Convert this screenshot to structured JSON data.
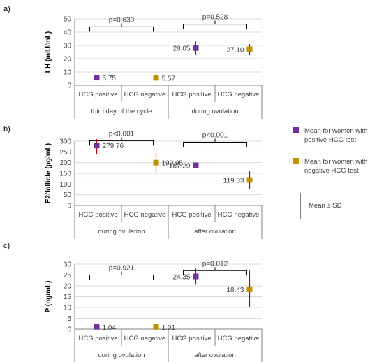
{
  "colors": {
    "positive": "#7030a0",
    "negative": "#bf9000",
    "sd_line": "#c00000",
    "grid": "#d9d9d9",
    "axis": "#808080",
    "text": "#404040"
  },
  "legend": {
    "positive_label": [
      "Mean for women with",
      "positive HCG test"
    ],
    "negative_label": [
      "Mean for women with",
      "negative HCG test"
    ],
    "sd_label": "Mean ± SD"
  },
  "chart_data": [
    {
      "panel_label": "a)",
      "type": "scatter",
      "ylabel": "LH (mIU/mL)",
      "ylim": [
        0,
        50
      ],
      "yticks": [
        0,
        10,
        20,
        30,
        40,
        50
      ],
      "categories": [
        "HCG positive",
        "HCG negative",
        "HCG positive",
        "HCG negative"
      ],
      "groups": [
        "third day of the cycle",
        "during ovulation"
      ],
      "series": [
        {
          "name": "Mean for women with positive HCG test",
          "values": [
            5.75,
            null,
            28.05,
            null
          ],
          "sd_low": [
            null,
            null,
            23,
            null
          ],
          "sd_high": [
            null,
            null,
            33,
            null
          ]
        },
        {
          "name": "Mean for women with negative HCG test",
          "values": [
            null,
            5.57,
            null,
            27.1
          ],
          "sd_low": [
            null,
            null,
            null,
            23
          ],
          "sd_high": [
            null,
            null,
            null,
            31
          ]
        }
      ],
      "data_labels": [
        "5.75",
        "5.57",
        "28.05",
        "27.10"
      ],
      "brackets": [
        {
          "from": 0,
          "to": 1,
          "y": 44,
          "label": "p=0.630"
        },
        {
          "from": 2,
          "to": 3,
          "y": 46,
          "label": "p=0.528"
        }
      ]
    },
    {
      "panel_label": "b)",
      "type": "scatter",
      "ylabel": "E2/follicle (pg/mL)",
      "ylim": [
        0,
        300
      ],
      "yticks": [
        0,
        50,
        100,
        150,
        200,
        250,
        300
      ],
      "categories": [
        "HCG positive",
        "HCG negative",
        "HCG positive",
        "HCG negative"
      ],
      "groups": [
        "during ovulation",
        "after ovulation"
      ],
      "series": [
        {
          "name": "Mean for women with positive HCG test",
          "values": [
            279.76,
            null,
            187.29,
            null
          ],
          "sd_low": [
            240,
            null,
            null,
            null
          ],
          "sd_high": [
            310,
            null,
            null,
            null
          ]
        },
        {
          "name": "Mean for women with negative HCG test",
          "values": [
            null,
            199.95,
            null,
            119.03
          ],
          "sd_low": [
            null,
            150,
            null,
            75
          ],
          "sd_high": [
            null,
            245,
            null,
            162
          ]
        }
      ],
      "data_labels": [
        "279.76",
        "199.95",
        "187.29",
        "119.03"
      ],
      "brackets": [
        {
          "from": 0,
          "to": 1,
          "y": 302,
          "label": "p<0.001"
        },
        {
          "from": 2,
          "to": 3,
          "y": 295,
          "label": "p<0.001"
        }
      ]
    },
    {
      "panel_label": "c)",
      "type": "scatter",
      "ylabel": "P (ng/mL)",
      "ylim": [
        0,
        30
      ],
      "yticks": [
        0,
        5,
        10,
        15,
        20,
        25,
        30
      ],
      "categories": [
        "HCG positive",
        "HCG negative",
        "HCG positive",
        "HCG negative"
      ],
      "groups": [
        "during ovulation",
        "after ovulation"
      ],
      "series": [
        {
          "name": "Mean for women with positive HCG test",
          "values": [
            1.04,
            null,
            24.35,
            null
          ],
          "sd_low": [
            null,
            null,
            20.5,
            null
          ],
          "sd_high": [
            null,
            null,
            28,
            null
          ]
        },
        {
          "name": "Mean for women with negative HCG test",
          "values": [
            null,
            1.01,
            null,
            18.43
          ],
          "sd_low": [
            null,
            null,
            null,
            10
          ],
          "sd_high": [
            null,
            null,
            null,
            27
          ]
        }
      ],
      "data_labels": [
        "1.04",
        "1.01",
        "24.35",
        "18.43"
      ],
      "brackets": [
        {
          "from": 0,
          "to": 1,
          "y": 25,
          "label": "p=0.921"
        },
        {
          "from": 2,
          "to": 3,
          "y": 27,
          "label": "p=0.012"
        }
      ]
    }
  ]
}
